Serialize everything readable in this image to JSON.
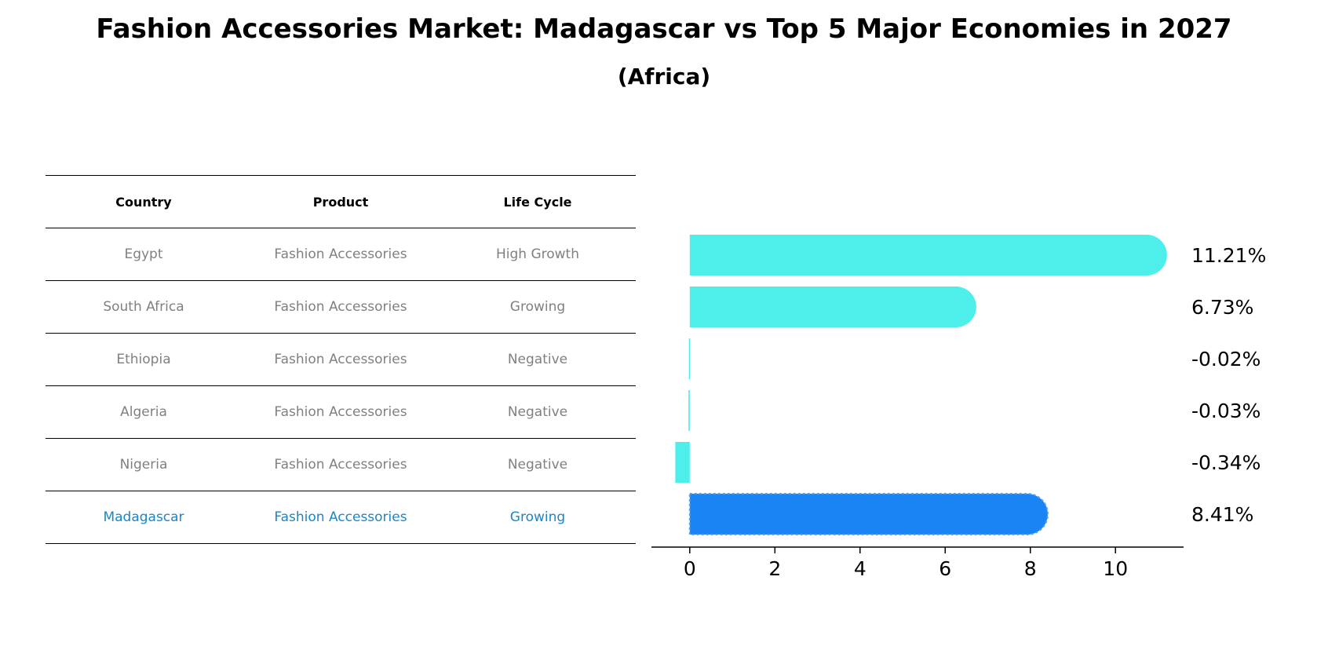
{
  "header": {
    "title": "Fashion Accessories Market: Madagascar vs Top 5 Major Economies in 2027",
    "subtitle": "(Africa)"
  },
  "table": {
    "columns": [
      "Country",
      "Product",
      "Life Cycle"
    ],
    "rows": [
      {
        "country": "Egypt",
        "product": "Fashion Accessories",
        "life_cycle": "High Growth"
      },
      {
        "country": "South Africa",
        "product": "Fashion Accessories",
        "life_cycle": "Growing"
      },
      {
        "country": "Ethiopia",
        "product": "Fashion Accessories",
        "life_cycle": "Negative"
      },
      {
        "country": "Algeria",
        "product": "Fashion Accessories",
        "life_cycle": "Negative"
      },
      {
        "country": "Nigeria",
        "product": "Fashion Accessories",
        "life_cycle": "Negative"
      },
      {
        "country": "Madagascar",
        "product": "Fashion Accessories",
        "life_cycle": "Growing"
      }
    ],
    "highlight_color": "#1a86c9",
    "text_color": "#808080"
  },
  "chart_data": {
    "type": "bar",
    "orientation": "horizontal",
    "categories": [
      "Egypt",
      "South Africa",
      "Ethiopia",
      "Algeria",
      "Nigeria",
      "Madagascar"
    ],
    "values": [
      11.21,
      6.73,
      -0.02,
      -0.03,
      -0.34,
      8.41
    ],
    "value_labels": [
      "11.21%",
      "6.73%",
      "-0.02%",
      "-0.03%",
      "-0.34%",
      "8.41%"
    ],
    "xlim": [
      -0.9,
      11.6
    ],
    "xticks": [
      0,
      2,
      4,
      6,
      8,
      10
    ],
    "colors": [
      "#4eeeea",
      "#4eeeea",
      "#4eeeea",
      "#4eeeea",
      "#4eeeea",
      "#1985f5"
    ],
    "highlight_index": 5,
    "grid": false
  }
}
